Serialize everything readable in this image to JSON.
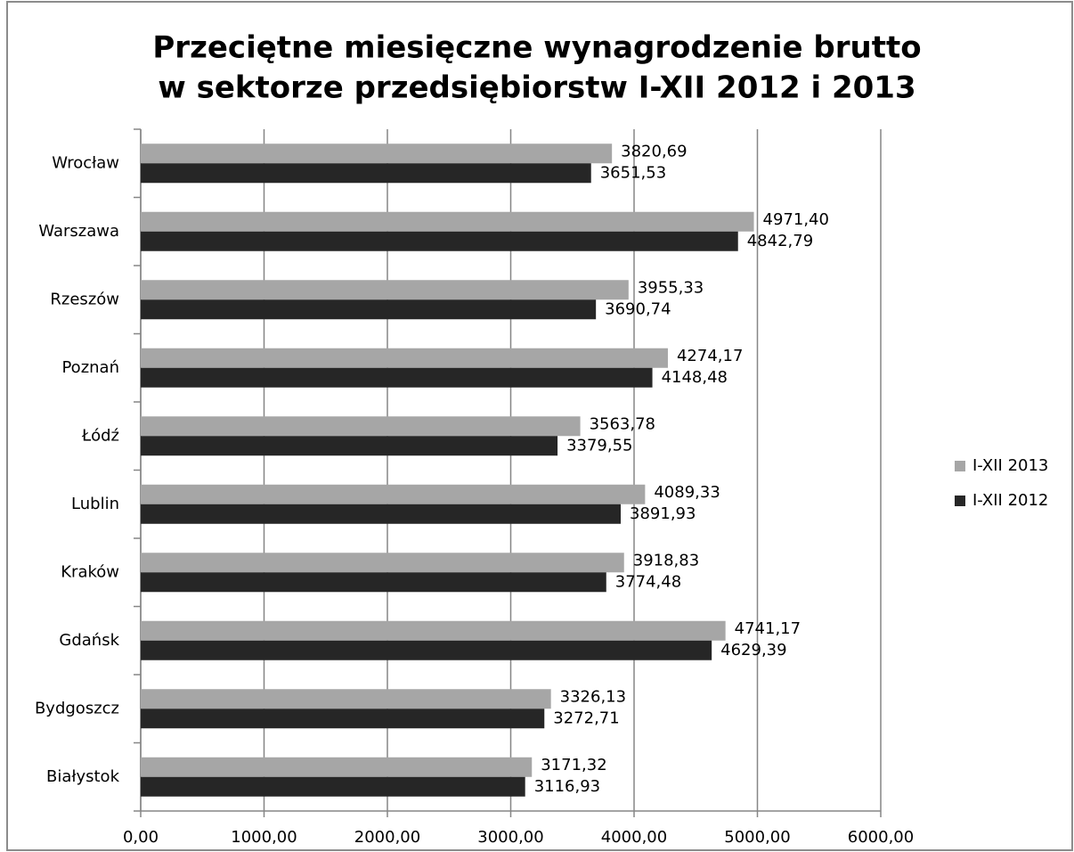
{
  "chart_data": {
    "type": "bar",
    "orientation": "horizontal",
    "title": [
      "Przeciętne miesięczne wynagrodzenie brutto",
      "w sektorze przedsiębiorstw I-XII 2012 i 2013"
    ],
    "categories": [
      "Wrocław",
      "Warszawa",
      "Rzeszów",
      "Poznań",
      "Łódź",
      "Lublin",
      "Kraków",
      "Gdańsk",
      "Bydgoszcz",
      "Białystok"
    ],
    "series": [
      {
        "name": "I-XII 2013",
        "color": "#a6a6a6",
        "values": [
          3820.69,
          4971.4,
          3955.33,
          4274.17,
          3563.78,
          4089.33,
          3918.83,
          4741.17,
          3326.13,
          3171.32
        ],
        "value_labels": [
          "3820,69",
          "4971,40",
          "3955,33",
          "4274,17",
          "3563,78",
          "4089,33",
          "3918,83",
          "4741,17",
          "3326,13",
          "3171,32"
        ]
      },
      {
        "name": "I-XII 2012",
        "color": "#262626",
        "values": [
          3651.53,
          4842.79,
          3690.74,
          4148.48,
          3379.55,
          3891.93,
          3774.48,
          4629.39,
          3272.71,
          3116.93
        ],
        "value_labels": [
          "3651,53",
          "4842,79",
          "3690,74",
          "4148,48",
          "3379,55",
          "3891,93",
          "3774,48",
          "4629,39",
          "3272,71",
          "3116,93"
        ]
      }
    ],
    "xlim": [
      0,
      6000
    ],
    "xticks": [
      {
        "value": 0,
        "label": "0,00"
      },
      {
        "value": 1000,
        "label": "1000,00"
      },
      {
        "value": 2000,
        "label": "2000,00"
      },
      {
        "value": 3000,
        "label": "3000,00"
      },
      {
        "value": 4000,
        "label": "4000,00"
      },
      {
        "value": 5000,
        "label": "5000,00"
      },
      {
        "value": 6000,
        "label": "6000,00"
      }
    ],
    "grid": true,
    "legend": "right"
  }
}
